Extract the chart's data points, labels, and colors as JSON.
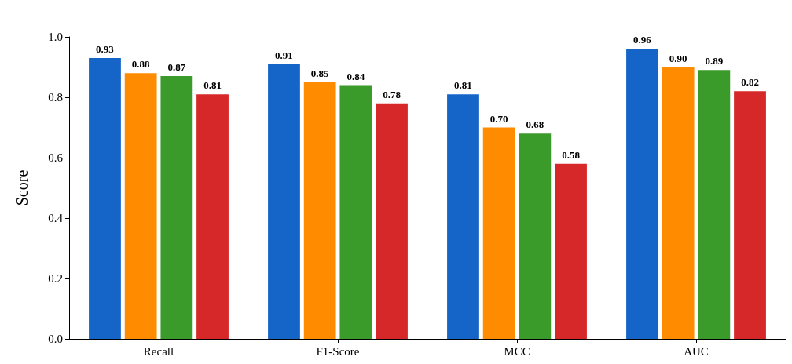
{
  "chart_data": {
    "type": "bar",
    "ylabel": "Score",
    "categories": [
      "Recall",
      "F1-Score",
      "MCC",
      "AUC"
    ],
    "series": [
      {
        "color": "#1565c8",
        "values": [
          0.93,
          0.91,
          0.81,
          0.96
        ],
        "value_labels": [
          "0.93",
          "0.91",
          "0.81",
          "0.96"
        ]
      },
      {
        "color": "#ff8c00",
        "values": [
          0.88,
          0.85,
          0.7,
          0.9
        ],
        "value_labels": [
          "0.88",
          "0.85",
          "0.70",
          "0.90"
        ]
      },
      {
        "color": "#3a9a2a",
        "values": [
          0.87,
          0.84,
          0.68,
          0.89
        ],
        "value_labels": [
          "0.87",
          "0.84",
          "0.68",
          "0.89"
        ]
      },
      {
        "color": "#d62828",
        "values": [
          0.81,
          0.78,
          0.58,
          0.82
        ],
        "value_labels": [
          "0.81",
          "0.78",
          "0.58",
          "0.82"
        ]
      }
    ],
    "ylim": [
      0,
      1
    ],
    "yticks": [
      {
        "value": 0,
        "label": "0.0"
      },
      0.2,
      0.4,
      0.6,
      0.8,
      {
        "value": 1,
        "label": "1.0"
      }
    ],
    "grid": false
  }
}
